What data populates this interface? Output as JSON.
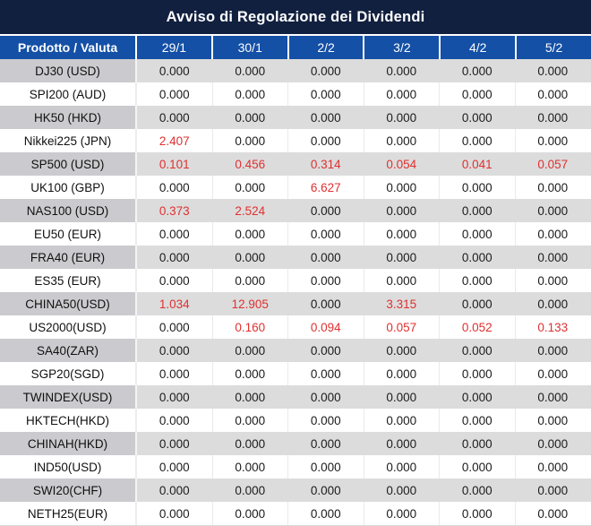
{
  "title": "Avviso di Regolazione dei Dividendi",
  "header": {
    "product_column": "Prodotto / Valuta",
    "dates": [
      "29/1",
      "30/1",
      "2/2",
      "3/2",
      "4/2",
      "5/2"
    ]
  },
  "rows": [
    {
      "product": "DJ30 (USD)",
      "values": [
        "0.000",
        "0.000",
        "0.000",
        "0.000",
        "0.000",
        "0.000"
      ],
      "red": [
        false,
        false,
        false,
        false,
        false,
        false
      ]
    },
    {
      "product": "SPI200 (AUD)",
      "values": [
        "0.000",
        "0.000",
        "0.000",
        "0.000",
        "0.000",
        "0.000"
      ],
      "red": [
        false,
        false,
        false,
        false,
        false,
        false
      ]
    },
    {
      "product": "HK50 (HKD)",
      "values": [
        "0.000",
        "0.000",
        "0.000",
        "0.000",
        "0.000",
        "0.000"
      ],
      "red": [
        false,
        false,
        false,
        false,
        false,
        false
      ]
    },
    {
      "product": "Nikkei225 (JPN)",
      "values": [
        "2.407",
        "0.000",
        "0.000",
        "0.000",
        "0.000",
        "0.000"
      ],
      "red": [
        true,
        false,
        false,
        false,
        false,
        false
      ]
    },
    {
      "product": "SP500 (USD)",
      "values": [
        "0.101",
        "0.456",
        "0.314",
        "0.054",
        "0.041",
        "0.057"
      ],
      "red": [
        true,
        true,
        true,
        true,
        true,
        true
      ]
    },
    {
      "product": "UK100 (GBP)",
      "values": [
        "0.000",
        "0.000",
        "6.627",
        "0.000",
        "0.000",
        "0.000"
      ],
      "red": [
        false,
        false,
        true,
        false,
        false,
        false
      ]
    },
    {
      "product": "NAS100 (USD)",
      "values": [
        "0.373",
        "2.524",
        "0.000",
        "0.000",
        "0.000",
        "0.000"
      ],
      "red": [
        true,
        true,
        false,
        false,
        false,
        false
      ]
    },
    {
      "product": "EU50 (EUR)",
      "values": [
        "0.000",
        "0.000",
        "0.000",
        "0.000",
        "0.000",
        "0.000"
      ],
      "red": [
        false,
        false,
        false,
        false,
        false,
        false
      ]
    },
    {
      "product": "FRA40 (EUR)",
      "values": [
        "0.000",
        "0.000",
        "0.000",
        "0.000",
        "0.000",
        "0.000"
      ],
      "red": [
        false,
        false,
        false,
        false,
        false,
        false
      ]
    },
    {
      "product": "ES35 (EUR)",
      "values": [
        "0.000",
        "0.000",
        "0.000",
        "0.000",
        "0.000",
        "0.000"
      ],
      "red": [
        false,
        false,
        false,
        false,
        false,
        false
      ]
    },
    {
      "product": "CHINA50(USD)",
      "values": [
        "1.034",
        "12.905",
        "0.000",
        "3.315",
        "0.000",
        "0.000"
      ],
      "red": [
        true,
        true,
        false,
        true,
        false,
        false
      ]
    },
    {
      "product": "US2000(USD)",
      "values": [
        "0.000",
        "0.160",
        "0.094",
        "0.057",
        "0.052",
        "0.133"
      ],
      "red": [
        false,
        true,
        true,
        true,
        true,
        true
      ]
    },
    {
      "product": "SA40(ZAR)",
      "values": [
        "0.000",
        "0.000",
        "0.000",
        "0.000",
        "0.000",
        "0.000"
      ],
      "red": [
        false,
        false,
        false,
        false,
        false,
        false
      ]
    },
    {
      "product": "SGP20(SGD)",
      "values": [
        "0.000",
        "0.000",
        "0.000",
        "0.000",
        "0.000",
        "0.000"
      ],
      "red": [
        false,
        false,
        false,
        false,
        false,
        false
      ]
    },
    {
      "product": "TWINDEX(USD)",
      "values": [
        "0.000",
        "0.000",
        "0.000",
        "0.000",
        "0.000",
        "0.000"
      ],
      "red": [
        false,
        false,
        false,
        false,
        false,
        false
      ]
    },
    {
      "product": "HKTECH(HKD)",
      "values": [
        "0.000",
        "0.000",
        "0.000",
        "0.000",
        "0.000",
        "0.000"
      ],
      "red": [
        false,
        false,
        false,
        false,
        false,
        false
      ]
    },
    {
      "product": "CHINAH(HKD)",
      "values": [
        "0.000",
        "0.000",
        "0.000",
        "0.000",
        "0.000",
        "0.000"
      ],
      "red": [
        false,
        false,
        false,
        false,
        false,
        false
      ]
    },
    {
      "product": "IND50(USD)",
      "values": [
        "0.000",
        "0.000",
        "0.000",
        "0.000",
        "0.000",
        "0.000"
      ],
      "red": [
        false,
        false,
        false,
        false,
        false,
        false
      ]
    },
    {
      "product": "SWI20(CHF)",
      "values": [
        "0.000",
        "0.000",
        "0.000",
        "0.000",
        "0.000",
        "0.000"
      ],
      "red": [
        false,
        false,
        false,
        false,
        false,
        false
      ]
    },
    {
      "product": "NETH25(EUR)",
      "values": [
        "0.000",
        "0.000",
        "0.000",
        "0.000",
        "0.000",
        "0.000"
      ],
      "red": [
        false,
        false,
        false,
        false,
        false,
        false
      ]
    }
  ],
  "colors": {
    "title_bar": "#12203f",
    "header_blue": "#1450a6",
    "stripe_label_bg": "#cbcbcf",
    "stripe_value_bg": "#dcdcdc",
    "value_red": "#e03030",
    "value_black": "#1b1b1b"
  }
}
